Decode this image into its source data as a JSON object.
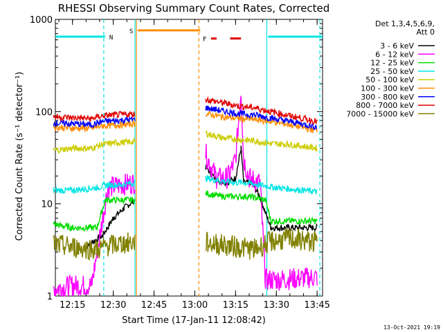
{
  "chart_data": {
    "type": "line",
    "title": "RHESSI Observing Summary Count Rates, Corrected",
    "xlabel": "Start Time (17-Jan-11 12:08:42)",
    "ylabel": "Corrected Count Rate (s⁻¹ detector⁻¹)",
    "y_scale": "log",
    "ylim": [
      1,
      1000
    ],
    "xlim": [
      "12:08:42",
      "13:47:00"
    ],
    "x_ticks": [
      "12:15",
      "12:30",
      "12:45",
      "13:00",
      "13:15",
      "13:30",
      "13:45"
    ],
    "y_ticks": [
      "1",
      "10",
      "100",
      "1000"
    ],
    "grid": false,
    "legend_position": "right",
    "legend_header": [
      "Det 1,3,4,5,6,9,",
      "Att 0"
    ],
    "footer_date": "13-Oct-2021 19:19",
    "flags": [
      {
        "label": "N",
        "color": "#00e5e5",
        "segments": [
          [
            "12:08:42",
            "12:27:00"
          ],
          [
            "13:27:00",
            "13:47:00"
          ]
        ],
        "level": 650
      },
      {
        "label": "S",
        "color": "#ff8c00",
        "segments": [
          [
            "12:39:00",
            "13:02:00"
          ]
        ],
        "level": 760
      },
      {
        "label": "F",
        "color": "#e00000",
        "segments": [
          [
            "13:06:00",
            "13:08:00"
          ],
          [
            "13:13:00",
            "13:17:00"
          ]
        ],
        "level": 620
      }
    ],
    "vertical_markers": [
      {
        "time": "12:26:30",
        "color": "#00e5e5",
        "style": "dashed"
      },
      {
        "time": "12:38:00",
        "color": "#00e5e5",
        "style": "solid"
      },
      {
        "time": "12:38:30",
        "color": "#ff8c00",
        "style": "solid"
      },
      {
        "time": "13:01:30",
        "color": "#ff8c00",
        "style": "dashed"
      },
      {
        "time": "13:26:30",
        "color": "#00e5e5",
        "style": "solid"
      },
      {
        "time": "13:46:00",
        "color": "#00e5e5",
        "style": "dashed"
      }
    ],
    "gaps": [
      [
        "12:38:30",
        "13:03:30"
      ]
    ],
    "series": [
      {
        "name": "3 - 6 keV",
        "color": "#000000",
        "points": [
          [
            "12:20",
            3.5
          ],
          [
            "12:26",
            4.5
          ],
          [
            "12:30",
            7
          ],
          [
            "12:34",
            9
          ],
          [
            "12:38",
            11
          ],
          [
            "13:04",
            25
          ],
          [
            "13:08",
            18
          ],
          [
            "13:12",
            17
          ],
          [
            "13:15",
            19
          ],
          [
            "13:17",
            40
          ],
          [
            "13:18",
            17
          ],
          [
            "13:21",
            17
          ],
          [
            "13:24",
            12
          ],
          [
            "13:26",
            8
          ],
          [
            "13:28",
            5.5
          ],
          [
            "13:45",
            5.5
          ]
        ]
      },
      {
        "name": "6 - 12 keV",
        "color": "#ff00ff",
        "points": [
          [
            "12:08",
            1.2
          ],
          [
            "12:15",
            1.3
          ],
          [
            "12:22",
            1.3
          ],
          [
            "12:28",
            15
          ],
          [
            "12:33",
            16
          ],
          [
            "12:38",
            17
          ],
          [
            "13:04",
            35
          ],
          [
            "13:06",
            25
          ],
          [
            "13:08",
            19
          ],
          [
            "13:12",
            19
          ],
          [
            "13:15",
            30
          ],
          [
            "13:17",
            170
          ],
          [
            "13:18",
            30
          ],
          [
            "13:20",
            19
          ],
          [
            "13:24",
            17
          ],
          [
            "13:26",
            1.5
          ],
          [
            "13:30",
            1.5
          ],
          [
            "13:45",
            1.6
          ]
        ]
      },
      {
        "name": "12 - 25 keV",
        "color": "#00dd00",
        "points": [
          [
            "12:08",
            6
          ],
          [
            "12:15",
            5.5
          ],
          [
            "12:24",
            5.5
          ],
          [
            "12:27",
            11
          ],
          [
            "12:33",
            11
          ],
          [
            "12:38",
            11
          ],
          [
            "13:04",
            13
          ],
          [
            "13:10",
            12
          ],
          [
            "13:16",
            12
          ],
          [
            "13:20",
            12
          ],
          [
            "13:26",
            11
          ],
          [
            "13:28",
            6.5
          ],
          [
            "13:45",
            6.5
          ]
        ]
      },
      {
        "name": "25 - 50 keV",
        "color": "#00e5e5",
        "points": [
          [
            "12:08",
            14
          ],
          [
            "12:15",
            14
          ],
          [
            "12:24",
            15
          ],
          [
            "12:28",
            16
          ],
          [
            "12:33",
            16
          ],
          [
            "12:38",
            17
          ],
          [
            "13:04",
            19
          ],
          [
            "13:08",
            18
          ],
          [
            "13:14",
            17
          ],
          [
            "13:18",
            17
          ],
          [
            "13:24",
            16
          ],
          [
            "13:30",
            15
          ],
          [
            "13:40",
            14
          ],
          [
            "13:45",
            13.5
          ]
        ]
      },
      {
        "name": "50 - 100 keV",
        "color": "#cccc00",
        "points": [
          [
            "12:08",
            38
          ],
          [
            "12:15",
            40
          ],
          [
            "12:22",
            40
          ],
          [
            "12:26",
            44
          ],
          [
            "12:31",
            46
          ],
          [
            "12:38",
            47
          ],
          [
            "13:04",
            58
          ],
          [
            "13:10",
            52
          ],
          [
            "13:16",
            50
          ],
          [
            "13:22",
            48
          ],
          [
            "13:28",
            45
          ],
          [
            "13:35",
            44
          ],
          [
            "13:45",
            40
          ]
        ]
      },
      {
        "name": "100 - 300 keV",
        "color": "#ff8c00",
        "points": [
          [
            "12:08",
            68
          ],
          [
            "12:15",
            66
          ],
          [
            "12:22",
            66
          ],
          [
            "12:26",
            70
          ],
          [
            "12:31",
            71
          ],
          [
            "12:38",
            74
          ],
          [
            "13:04",
            95
          ],
          [
            "13:10",
            88
          ],
          [
            "13:16",
            84
          ],
          [
            "13:22",
            82
          ],
          [
            "13:28",
            78
          ],
          [
            "13:35",
            72
          ],
          [
            "13:45",
            62
          ]
        ]
      },
      {
        "name": "300 - 800 keV",
        "color": "#0000ff",
        "points": [
          [
            "12:08",
            75
          ],
          [
            "12:15",
            74
          ],
          [
            "12:22",
            72
          ],
          [
            "12:26",
            78
          ],
          [
            "12:31",
            80
          ],
          [
            "12:38",
            82
          ],
          [
            "13:04",
            110
          ],
          [
            "13:10",
            102
          ],
          [
            "13:16",
            95
          ],
          [
            "13:22",
            92
          ],
          [
            "13:28",
            85
          ],
          [
            "13:35",
            78
          ],
          [
            "13:45",
            68
          ]
        ]
      },
      {
        "name": "800 - 7000 keV",
        "color": "#e00000",
        "points": [
          [
            "12:08",
            88
          ],
          [
            "12:15",
            86
          ],
          [
            "12:22",
            84
          ],
          [
            "12:26",
            90
          ],
          [
            "12:31",
            92
          ],
          [
            "12:38",
            94
          ],
          [
            "13:04",
            135
          ],
          [
            "13:10",
            125
          ],
          [
            "13:16",
            115
          ],
          [
            "13:22",
            110
          ],
          [
            "13:28",
            100
          ],
          [
            "13:35",
            90
          ],
          [
            "13:45",
            78
          ]
        ]
      },
      {
        "name": "7000 - 15000 keV",
        "color": "#808000",
        "points": [
          [
            "12:08",
            3.6
          ],
          [
            "12:15",
            3.4
          ],
          [
            "12:24",
            3.2
          ],
          [
            "12:28",
            3.5
          ],
          [
            "12:33",
            3.7
          ],
          [
            "12:38",
            3.8
          ],
          [
            "13:04",
            3.8
          ],
          [
            "13:10",
            3.6
          ],
          [
            "13:16",
            3.4
          ],
          [
            "13:22",
            3.2
          ],
          [
            "13:28",
            3.9
          ],
          [
            "13:35",
            4.2
          ],
          [
            "13:45",
            3.8
          ]
        ]
      }
    ]
  }
}
